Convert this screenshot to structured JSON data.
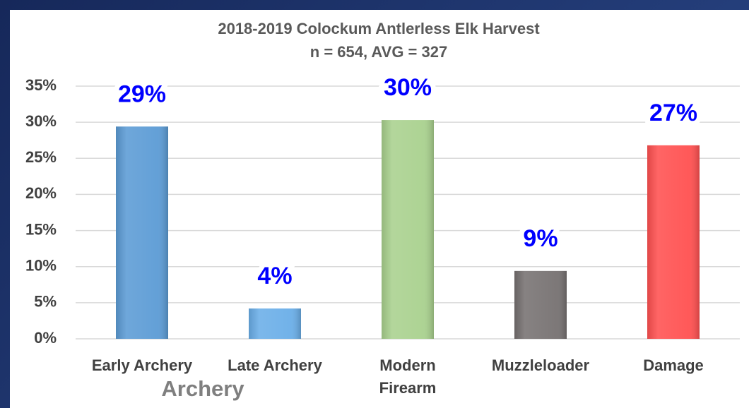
{
  "chart_data": {
    "type": "bar",
    "title": "2018-2019 Colockum Antlerless Elk Harvest",
    "subtitle": "n = 654, AVG = 327",
    "categories": [
      "Early Archery",
      "Late Archery",
      "Modern Firearm",
      "Muzzleloader",
      "Damage"
    ],
    "values": [
      29.4,
      4.2,
      30.3,
      9.4,
      26.8
    ],
    "value_labels": [
      "29%",
      "4%",
      "30%",
      "9%",
      "27%"
    ],
    "colors": [
      "#5b9bd5",
      "#6aaee8",
      "#a9d18e",
      "#767171",
      "#ff5050"
    ],
    "x_group_label": "Archery",
    "ylim": [
      0,
      35
    ],
    "yticks": [
      {
        "value": 0,
        "label": "0%"
      },
      {
        "value": 5,
        "label": "5%"
      },
      {
        "value": 10,
        "label": "10%"
      },
      {
        "value": 15,
        "label": "15%"
      },
      {
        "value": 20,
        "label": "20%"
      },
      {
        "value": 25,
        "label": "25%"
      },
      {
        "value": 30,
        "label": "30%"
      },
      {
        "value": 35,
        "label": "35%"
      }
    ],
    "grid": true
  }
}
